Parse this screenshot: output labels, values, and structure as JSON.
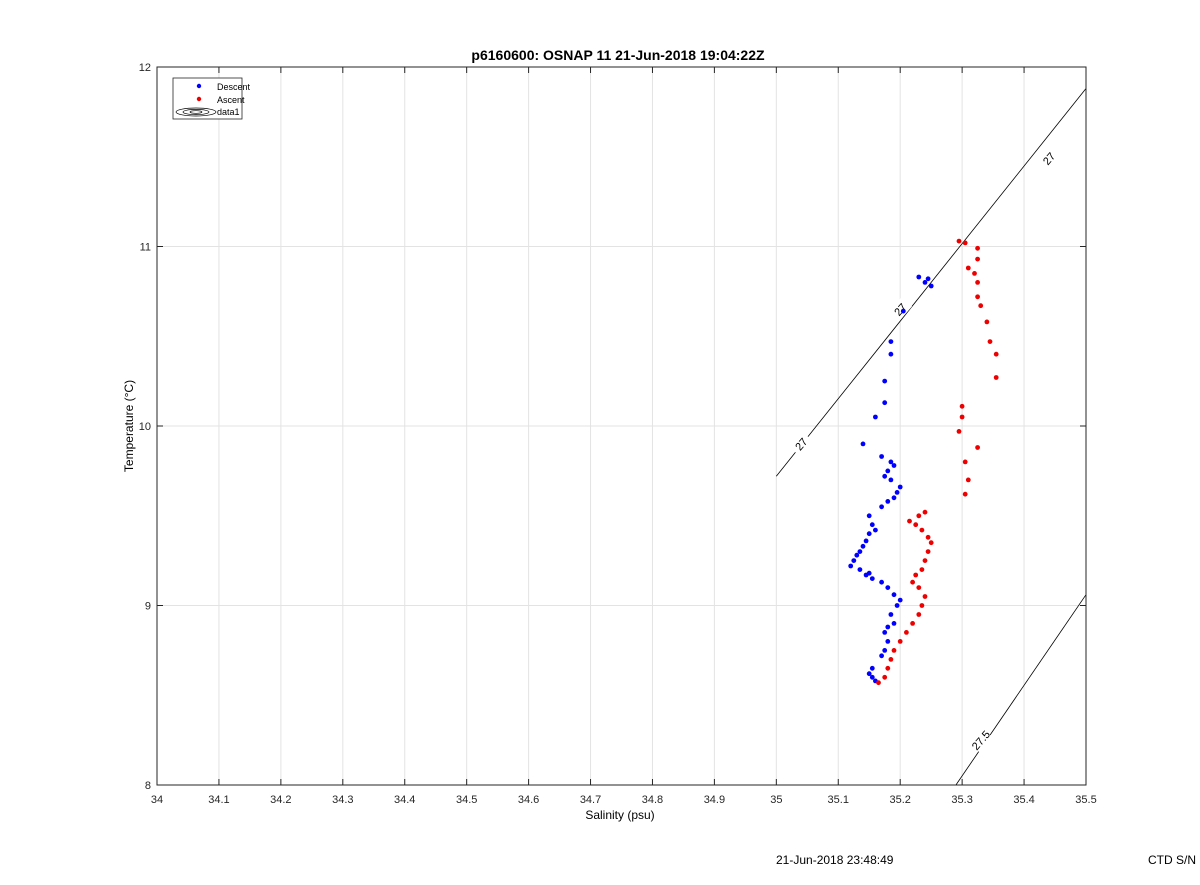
{
  "chart_data": {
    "type": "scatter",
    "title": "p6160600: OSNAP 11 21-Jun-2018 19:04:22Z",
    "xlabel": "Salinity (psu)",
    "ylabel": "Temperature (°C)",
    "xlim": [
      34,
      35.5
    ],
    "ylim": [
      8,
      12
    ],
    "xticks": [
      "34",
      "34.1",
      "34.2",
      "34.3",
      "34.4",
      "34.5",
      "34.6",
      "34.7",
      "34.8",
      "34.9",
      "35",
      "35.1",
      "35.2",
      "35.3",
      "35.4",
      "35.5"
    ],
    "yticks": [
      "8",
      "9",
      "10",
      "11",
      "12"
    ],
    "grid": true,
    "legend_position": "top-left",
    "series": [
      {
        "name": "Descent",
        "color": "#0000ff",
        "points": [
          [
            35.16,
            8.58
          ],
          [
            35.155,
            8.6
          ],
          [
            35.15,
            8.62
          ],
          [
            35.155,
            8.65
          ],
          [
            35.17,
            8.72
          ],
          [
            35.175,
            8.75
          ],
          [
            35.18,
            8.8
          ],
          [
            35.175,
            8.85
          ],
          [
            35.18,
            8.88
          ],
          [
            35.19,
            8.9
          ],
          [
            35.185,
            8.95
          ],
          [
            35.195,
            9.0
          ],
          [
            35.2,
            9.03
          ],
          [
            35.19,
            9.06
          ],
          [
            35.18,
            9.1
          ],
          [
            35.17,
            9.13
          ],
          [
            35.155,
            9.15
          ],
          [
            35.145,
            9.17
          ],
          [
            35.15,
            9.18
          ],
          [
            35.135,
            9.2
          ],
          [
            35.12,
            9.22
          ],
          [
            35.125,
            9.25
          ],
          [
            35.13,
            9.28
          ],
          [
            35.135,
            9.3
          ],
          [
            35.14,
            9.33
          ],
          [
            35.145,
            9.36
          ],
          [
            35.15,
            9.4
          ],
          [
            35.155,
            9.45
          ],
          [
            35.15,
            9.5
          ],
          [
            35.16,
            9.42
          ],
          [
            35.17,
            9.55
          ],
          [
            35.18,
            9.58
          ],
          [
            35.19,
            9.6
          ],
          [
            35.195,
            9.63
          ],
          [
            35.2,
            9.66
          ],
          [
            35.185,
            9.7
          ],
          [
            35.175,
            9.72
          ],
          [
            35.18,
            9.75
          ],
          [
            35.19,
            9.78
          ],
          [
            35.185,
            9.8
          ],
          [
            35.17,
            9.83
          ],
          [
            35.14,
            9.9
          ],
          [
            35.16,
            10.05
          ],
          [
            35.175,
            10.13
          ],
          [
            35.175,
            10.25
          ],
          [
            35.185,
            10.4
          ],
          [
            35.185,
            10.47
          ],
          [
            35.205,
            10.64
          ],
          [
            35.23,
            10.83
          ],
          [
            35.24,
            10.8
          ],
          [
            35.25,
            10.78
          ],
          [
            35.245,
            10.82
          ]
        ]
      },
      {
        "name": "Ascent",
        "color": "#ee0000",
        "points": [
          [
            35.165,
            8.57
          ],
          [
            35.175,
            8.6
          ],
          [
            35.18,
            8.65
          ],
          [
            35.185,
            8.7
          ],
          [
            35.19,
            8.75
          ],
          [
            35.2,
            8.8
          ],
          [
            35.21,
            8.85
          ],
          [
            35.22,
            8.9
          ],
          [
            35.23,
            8.95
          ],
          [
            35.235,
            9.0
          ],
          [
            35.24,
            9.05
          ],
          [
            35.23,
            9.1
          ],
          [
            35.22,
            9.13
          ],
          [
            35.225,
            9.17
          ],
          [
            35.235,
            9.2
          ],
          [
            35.24,
            9.25
          ],
          [
            35.245,
            9.3
          ],
          [
            35.25,
            9.35
          ],
          [
            35.245,
            9.38
          ],
          [
            35.235,
            9.42
          ],
          [
            35.225,
            9.45
          ],
          [
            35.215,
            9.47
          ],
          [
            35.23,
            9.5
          ],
          [
            35.24,
            9.52
          ],
          [
            35.305,
            9.62
          ],
          [
            35.31,
            9.7
          ],
          [
            35.305,
            9.8
          ],
          [
            35.325,
            9.88
          ],
          [
            35.295,
            9.97
          ],
          [
            35.3,
            10.05
          ],
          [
            35.3,
            10.11
          ],
          [
            35.355,
            10.27
          ],
          [
            35.355,
            10.4
          ],
          [
            35.345,
            10.47
          ],
          [
            35.34,
            10.58
          ],
          [
            35.33,
            10.67
          ],
          [
            35.325,
            10.72
          ],
          [
            35.325,
            10.8
          ],
          [
            35.32,
            10.85
          ],
          [
            35.31,
            10.88
          ],
          [
            35.325,
            10.93
          ],
          [
            35.325,
            10.99
          ],
          [
            35.305,
            11.02
          ],
          [
            35.295,
            11.03
          ]
        ]
      }
    ],
    "contours": [
      {
        "label": "27",
        "color": "#000000",
        "points": [
          [
            35.0,
            9.72
          ],
          [
            35.5,
            11.88
          ]
        ]
      },
      {
        "label": "27.5",
        "color": "#000000",
        "points": [
          [
            35.29,
            8.0
          ],
          [
            35.5,
            9.06
          ]
        ]
      }
    ],
    "contour_labels": [
      {
        "text": "27",
        "x": 35.04,
        "y": 9.9
      },
      {
        "text": "27",
        "x": 35.2,
        "y": 10.65
      },
      {
        "text": "27",
        "x": 35.44,
        "y": 11.49
      },
      {
        "text": "27.5",
        "x": 35.33,
        "y": 8.25
      }
    ],
    "legend": [
      {
        "label": "Descent",
        "marker": "dot",
        "color": "#0000ff"
      },
      {
        "label": "Ascent",
        "marker": "dot",
        "color": "#ee0000"
      },
      {
        "label": "data1",
        "marker": "contour",
        "color": "#000000"
      }
    ]
  },
  "footer": {
    "timestamp": "21-Jun-2018 23:48:49",
    "serial": "CTD S/N"
  }
}
